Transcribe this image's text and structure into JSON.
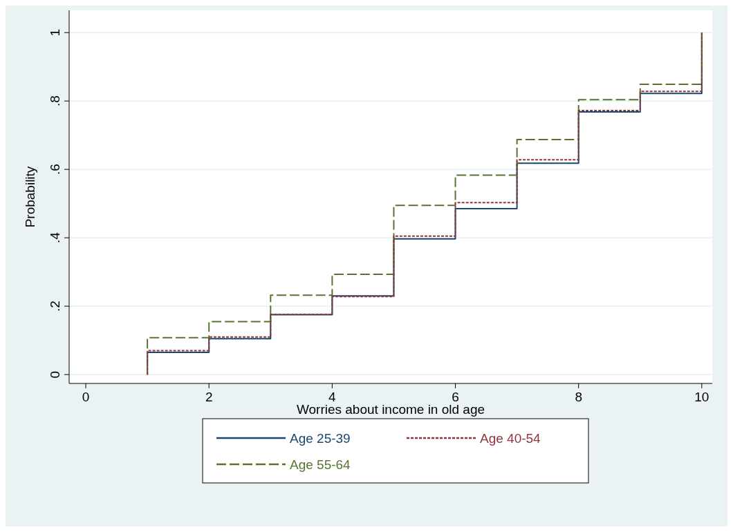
{
  "chart_data": {
    "type": "step",
    "xlabel": "Worries about income in old age",
    "ylabel": "Probability",
    "x": [
      1,
      1,
      2,
      3,
      4,
      5,
      6,
      7,
      8,
      9,
      10
    ],
    "series": [
      {
        "name": "Age 25-39",
        "color": "#1a476f",
        "line_style": "solid",
        "values": [
          0,
          0.065,
          0.105,
          0.175,
          0.23,
          0.397,
          0.485,
          0.618,
          0.768,
          0.822,
          1
        ]
      },
      {
        "name": "Age 40-54",
        "color": "#90353b",
        "line_style": "dotted",
        "values": [
          0,
          0.07,
          0.11,
          0.176,
          0.228,
          0.405,
          0.503,
          0.628,
          0.772,
          0.828,
          1
        ]
      },
      {
        "name": "Age 55-64",
        "color": "#55752f",
        "line_style": "dashed",
        "values": [
          0,
          0.108,
          0.155,
          0.232,
          0.293,
          0.495,
          0.583,
          0.687,
          0.804,
          0.849,
          1
        ]
      }
    ],
    "xlim": [
      -0.27,
      10.17
    ],
    "ylim": [
      -0.026,
      1.065
    ],
    "xticks": [
      0,
      2,
      4,
      6,
      8,
      10
    ],
    "yticks": [
      0,
      {
        "value": 0.2,
        "label": ".2"
      },
      {
        "value": 0.4,
        "label": ".4"
      },
      {
        "value": 0.6,
        "label": ".6"
      },
      {
        "value": 0.8,
        "label": ".8"
      },
      1
    ],
    "grid": "y",
    "legend": "bottom",
    "marker": "none"
  }
}
